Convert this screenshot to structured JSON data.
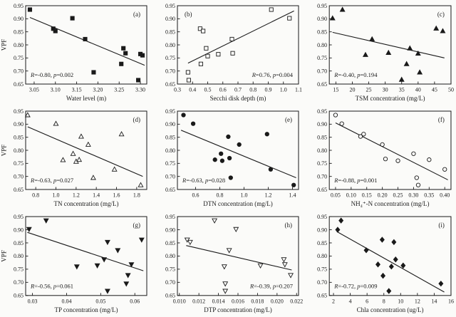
{
  "figure": {
    "ylabel": "VPF",
    "ink_color": "#1a1a1a",
    "background_color": "#fbfbf9"
  },
  "chart_data": [
    {
      "type": "scatter",
      "panel": "(a)",
      "panel_pos": "tr",
      "marker": "square-filled",
      "xlabel": "Water level (m)",
      "ylabel": "VPF",
      "xlim": [
        3.03,
        3.315
      ],
      "ylim": [
        0.65,
        0.95
      ],
      "xticks": [
        3.05,
        3.1,
        3.15,
        3.2,
        3.25,
        3.3
      ],
      "xtick_labels": [
        "3.05",
        "3.10",
        "3.15",
        "3.20",
        "3.25",
        "3.30"
      ],
      "yticks": [
        0.65,
        0.7,
        0.75,
        0.8,
        0.85,
        0.9,
        0.95
      ],
      "ytick_labels": [
        "0.65",
        "0.70",
        "0.75",
        "0.80",
        "0.85",
        "0.90",
        "0.95"
      ],
      "points": [
        [
          3.04,
          0.935
        ],
        [
          3.095,
          0.862
        ],
        [
          3.1,
          0.853
        ],
        [
          3.14,
          0.902
        ],
        [
          3.17,
          0.822
        ],
        [
          3.19,
          0.695
        ],
        [
          3.255,
          0.727
        ],
        [
          3.26,
          0.787
        ],
        [
          3.265,
          0.768
        ],
        [
          3.295,
          0.665
        ],
        [
          3.3,
          0.765
        ],
        [
          3.305,
          0.76
        ]
      ],
      "trend": [
        3.04,
        0.905,
        3.31,
        0.722
      ],
      "stats": {
        "R": "-0.80",
        "p": "0.002",
        "pos": "bl"
      }
    },
    {
      "type": "scatter",
      "panel": "(b)",
      "panel_pos": "tl",
      "marker": "square-open",
      "xlabel": "Secchi disk depth (m)",
      "ylabel": "",
      "xlim": [
        0.3,
        1.1
      ],
      "ylim": [
        0.65,
        0.95
      ],
      "xticks": [
        0.3,
        0.4,
        0.5,
        0.6,
        0.7,
        0.8,
        0.9,
        1.0,
        1.1
      ],
      "xtick_labels": [
        "0.3",
        "0.4",
        "0.5",
        "0.6",
        "0.7",
        "0.8",
        "0.9",
        "1.0",
        "1.1"
      ],
      "yticks": [
        0.65,
        0.7,
        0.75,
        0.8,
        0.85,
        0.9,
        0.95
      ],
      "ytick_labels": [
        "0.65",
        "0.70",
        "0.75",
        "0.80",
        "0.85",
        "0.90",
        "0.95"
      ],
      "points": [
        [
          0.37,
          0.695
        ],
        [
          0.375,
          0.665
        ],
        [
          0.45,
          0.862
        ],
        [
          0.47,
          0.853
        ],
        [
          0.455,
          0.727
        ],
        [
          0.49,
          0.787
        ],
        [
          0.5,
          0.757
        ],
        [
          0.57,
          0.764
        ],
        [
          0.66,
          0.822
        ],
        [
          0.665,
          0.768
        ],
        [
          0.92,
          0.935
        ],
        [
          1.04,
          0.902
        ]
      ],
      "trend": [
        0.37,
        0.73,
        1.07,
        0.93
      ],
      "stats": {
        "R": "0.76",
        "p": "0.004",
        "pos": "br"
      }
    },
    {
      "type": "scatter",
      "panel": "(c)",
      "panel_pos": "tr",
      "marker": "triangle-filled",
      "xlabel": "TSM concentration (mg/L)",
      "ylabel": "",
      "xlim": [
        13,
        50
      ],
      "ylim": [
        0.65,
        0.95
      ],
      "xticks": [
        15,
        20,
        25,
        30,
        35,
        40,
        45,
        50
      ],
      "xtick_labels": [
        "15",
        "20",
        "25",
        "30",
        "35",
        "40",
        "45",
        "50"
      ],
      "yticks": [
        0.65,
        0.7,
        0.75,
        0.8,
        0.85,
        0.9,
        0.95
      ],
      "ytick_labels": [
        "0.65",
        "0.70",
        "0.75",
        "0.80",
        "0.85",
        "0.90",
        "0.95"
      ],
      "points": [
        [
          14,
          0.902
        ],
        [
          17,
          0.935
        ],
        [
          24,
          0.762
        ],
        [
          26,
          0.822
        ],
        [
          31,
          0.77
        ],
        [
          35,
          0.667
        ],
        [
          36.5,
          0.727
        ],
        [
          37.5,
          0.787
        ],
        [
          40,
          0.767
        ],
        [
          40.5,
          0.695
        ],
        [
          45.5,
          0.863
        ],
        [
          47.5,
          0.853
        ]
      ],
      "trend": [
        14,
        0.848,
        48,
        0.75
      ],
      "stats": {
        "R": "-0.40",
        "p": "0.194",
        "pos": "bl"
      }
    },
    {
      "type": "scatter",
      "panel": "(d)",
      "panel_pos": "tr",
      "marker": "triangle-open",
      "xlabel": "TN concentration (mg/L)",
      "ylabel": "VPF",
      "xlim": [
        0.7,
        1.9
      ],
      "ylim": [
        0.65,
        0.95
      ],
      "xticks": [
        0.8,
        1.0,
        1.2,
        1.4,
        1.6,
        1.8
      ],
      "xtick_labels": [
        "0.8",
        "1.0",
        "1.2",
        "1.4",
        "1.6",
        "1.8"
      ],
      "yticks": [
        0.65,
        0.7,
        0.75,
        0.8,
        0.85,
        0.9,
        0.95
      ],
      "ytick_labels": [
        "0.65",
        "0.70",
        "0.75",
        "0.80",
        "0.85",
        "0.90",
        "0.95"
      ],
      "points": [
        [
          0.72,
          0.935
        ],
        [
          1.0,
          0.902
        ],
        [
          1.07,
          0.763
        ],
        [
          1.17,
          0.787
        ],
        [
          1.2,
          0.757
        ],
        [
          1.23,
          0.764
        ],
        [
          1.25,
          0.853
        ],
        [
          1.32,
          0.822
        ],
        [
          1.37,
          0.695
        ],
        [
          1.58,
          0.727
        ],
        [
          1.65,
          0.862
        ],
        [
          1.84,
          0.667
        ]
      ],
      "trend": [
        0.72,
        0.89,
        1.86,
        0.7
      ],
      "stats": {
        "R": "-0.63",
        "p": "0.027",
        "pos": "bl"
      }
    },
    {
      "type": "scatter",
      "panel": "(e)",
      "panel_pos": "tr",
      "marker": "circle-filled",
      "xlabel": "DTN concentration (mg/L)",
      "ylabel": "",
      "xlim": [
        0.45,
        1.45
      ],
      "ylim": [
        0.65,
        0.95
      ],
      "xticks": [
        0.6,
        0.8,
        1.0,
        1.2,
        1.4
      ],
      "xtick_labels": [
        "0.6",
        "0.8",
        "1.0",
        "1.2",
        "1.4"
      ],
      "yticks": [
        0.65,
        0.7,
        0.75,
        0.8,
        0.85,
        0.9,
        0.95
      ],
      "ytick_labels": [
        "0.65",
        "0.70",
        "0.75",
        "0.80",
        "0.85",
        "0.90",
        "0.95"
      ],
      "points": [
        [
          0.5,
          0.935
        ],
        [
          0.58,
          0.902
        ],
        [
          0.76,
          0.764
        ],
        [
          0.81,
          0.787
        ],
        [
          0.82,
          0.76
        ],
        [
          0.87,
          0.852
        ],
        [
          0.88,
          0.77
        ],
        [
          0.89,
          0.695
        ],
        [
          0.96,
          0.822
        ],
        [
          1.19,
          0.862
        ],
        [
          1.22,
          0.727
        ],
        [
          1.41,
          0.667
        ]
      ],
      "trend": [
        0.48,
        0.877,
        1.43,
        0.695
      ],
      "stats": {
        "R": "-0.63",
        "p": "0.028",
        "pos": "bl"
      }
    },
    {
      "type": "scatter",
      "panel": "(f)",
      "panel_pos": "tr",
      "marker": "circle-open",
      "xlabel": "NH₄⁺-N concentration (mg/L)",
      "ylabel": "",
      "xlim": [
        0.03,
        0.42
      ],
      "ylim": [
        0.65,
        0.95
      ],
      "xticks": [
        0.05,
        0.1,
        0.15,
        0.2,
        0.25,
        0.3,
        0.35,
        0.4
      ],
      "xtick_labels": [
        "0.05",
        "0.10",
        "0.15",
        "0.20",
        "0.25",
        "0.30",
        "0.35",
        "0.40"
      ],
      "yticks": [
        0.65,
        0.7,
        0.75,
        0.8,
        0.85,
        0.9,
        0.95
      ],
      "ytick_labels": [
        "0.65",
        "0.70",
        "0.75",
        "0.80",
        "0.85",
        "0.90",
        "0.95"
      ],
      "points": [
        [
          0.05,
          0.935
        ],
        [
          0.07,
          0.902
        ],
        [
          0.13,
          0.853
        ],
        [
          0.14,
          0.862
        ],
        [
          0.2,
          0.822
        ],
        [
          0.21,
          0.767
        ],
        [
          0.25,
          0.76
        ],
        [
          0.3,
          0.787
        ],
        [
          0.31,
          0.695
        ],
        [
          0.315,
          0.667
        ],
        [
          0.35,
          0.764
        ],
        [
          0.4,
          0.727
        ]
      ],
      "trend": [
        0.05,
        0.905,
        0.41,
        0.687
      ],
      "stats": {
        "R": "-0.88",
        "p": "0.001",
        "pos": "bl"
      }
    },
    {
      "type": "scatter",
      "panel": "(g)",
      "panel_pos": "tr",
      "marker": "triangle-down-filled",
      "xlabel": "TP concentration (mg/L)",
      "ylabel": "VPF",
      "xlim": [
        0.028,
        0.0635
      ],
      "ylim": [
        0.65,
        0.95
      ],
      "xticks": [
        0.03,
        0.04,
        0.05,
        0.06
      ],
      "xtick_labels": [
        "0.03",
        "0.04",
        "0.05",
        "0.06"
      ],
      "yticks": [
        0.65,
        0.7,
        0.75,
        0.8,
        0.85,
        0.9,
        0.95
      ],
      "ytick_labels": [
        "0.65",
        "0.70",
        "0.75",
        "0.80",
        "0.85",
        "0.90",
        "0.95"
      ],
      "points": [
        [
          0.029,
          0.902
        ],
        [
          0.034,
          0.935
        ],
        [
          0.043,
          0.76
        ],
        [
          0.049,
          0.764
        ],
        [
          0.051,
          0.787
        ],
        [
          0.052,
          0.853
        ],
        [
          0.052,
          0.667
        ],
        [
          0.055,
          0.822
        ],
        [
          0.0575,
          0.695
        ],
        [
          0.058,
          0.727
        ],
        [
          0.059,
          0.768
        ],
        [
          0.062,
          0.862
        ]
      ],
      "trend": [
        0.0285,
        0.89,
        0.0625,
        0.744
      ],
      "stats": {
        "R": "-0.56",
        "p": "0.061",
        "pos": "bl"
      }
    },
    {
      "type": "scatter",
      "panel": "(h)",
      "panel_pos": "tr",
      "marker": "triangle-down-open",
      "xlabel": "DTP concentration (mg/L)",
      "ylabel": "",
      "xlim": [
        0.0098,
        0.0222
      ],
      "ylim": [
        0.65,
        0.95
      ],
      "xticks": [
        0.01,
        0.012,
        0.014,
        0.016,
        0.018,
        0.02,
        0.022
      ],
      "xtick_labels": [
        "0.010",
        "0.012",
        "0.014",
        "0.016",
        "0.018",
        "0.020",
        "0.022"
      ],
      "yticks": [
        0.65,
        0.7,
        0.75,
        0.8,
        0.85,
        0.9,
        0.95
      ],
      "ytick_labels": [
        "0.65",
        "0.70",
        "0.75",
        "0.80",
        "0.85",
        "0.90",
        "0.95"
      ],
      "points": [
        [
          0.0108,
          0.862
        ],
        [
          0.0111,
          0.853
        ],
        [
          0.0136,
          0.935
        ],
        [
          0.0146,
          0.76
        ],
        [
          0.0147,
          0.695
        ],
        [
          0.0147,
          0.667
        ],
        [
          0.0151,
          0.822
        ],
        [
          0.0158,
          0.902
        ],
        [
          0.0183,
          0.764
        ],
        [
          0.0207,
          0.787
        ],
        [
          0.0208,
          0.768
        ],
        [
          0.0214,
          0.727
        ]
      ],
      "trend": [
        0.0107,
        0.84,
        0.0215,
        0.747
      ],
      "stats": {
        "R": "-0.39",
        "p": "0.207",
        "pos": "br"
      }
    },
    {
      "type": "scatter",
      "panel": "(i)",
      "panel_pos": "tr",
      "marker": "diamond-filled",
      "xlabel": "Chla concentration (ug/L)",
      "ylabel": "",
      "xlim": [
        1.5,
        16
      ],
      "ylim": [
        0.65,
        0.95
      ],
      "xticks": [
        2,
        4,
        6,
        8,
        10,
        12,
        14,
        16
      ],
      "xtick_labels": [
        "2",
        "4",
        "6",
        "8",
        "10",
        "12",
        "14",
        "16"
      ],
      "yticks": [
        0.65,
        0.7,
        0.75,
        0.8,
        0.85,
        0.9,
        0.95
      ],
      "ytick_labels": [
        "0.65",
        "0.70",
        "0.75",
        "0.80",
        "0.85",
        "0.90",
        "0.95"
      ],
      "points": [
        [
          2.5,
          0.9
        ],
        [
          2.9,
          0.935
        ],
        [
          5.9,
          0.822
        ],
        [
          7.3,
          0.768
        ],
        [
          7.8,
          0.862
        ],
        [
          7.9,
          0.725
        ],
        [
          8.6,
          0.667
        ],
        [
          8.9,
          0.76
        ],
        [
          9.2,
          0.853
        ],
        [
          9.4,
          0.787
        ],
        [
          10.3,
          0.764
        ],
        [
          14.8,
          0.695
        ]
      ],
      "trend": [
        2.4,
        0.893,
        15.2,
        0.663
      ],
      "stats": {
        "R": "-0.72",
        "p": "0.009",
        "pos": "bl"
      }
    }
  ]
}
